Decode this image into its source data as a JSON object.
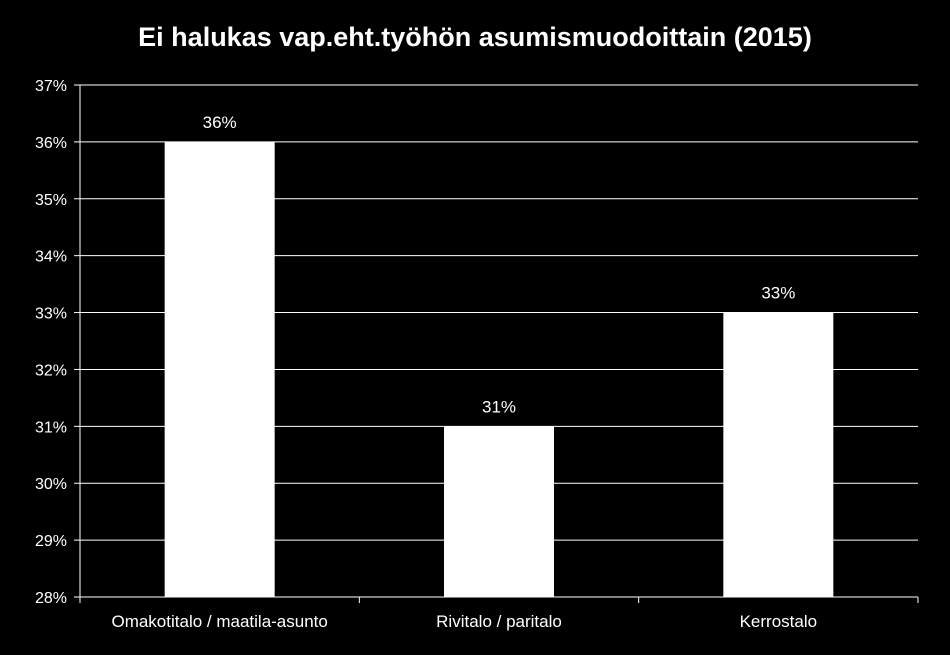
{
  "colors": {
    "background": "#000000",
    "bar": "#ffffff",
    "text": "#ffffff",
    "gridline": "#ffffff",
    "axis": "#ffffff"
  },
  "chart_data": {
    "type": "bar",
    "title": "Ei halukas vap.eht.työhön asumismuodoittain (2015)",
    "xlabel": "",
    "ylabel": "",
    "categories": [
      "Omakotitalo / maatila-asunto",
      "Rivitalo / paritalo",
      "Kerrostalo"
    ],
    "values": [
      36,
      31,
      33
    ],
    "data_labels": [
      "36%",
      "31%",
      "33%"
    ],
    "ylim": [
      28,
      37
    ],
    "yticks": [
      28,
      29,
      30,
      31,
      32,
      33,
      34,
      35,
      36,
      37
    ],
    "ytick_labels": [
      "28%",
      "29%",
      "30%",
      "31%",
      "32%",
      "33%",
      "34%",
      "35%",
      "36%",
      "37%"
    ],
    "grid": true,
    "legend": false
  }
}
